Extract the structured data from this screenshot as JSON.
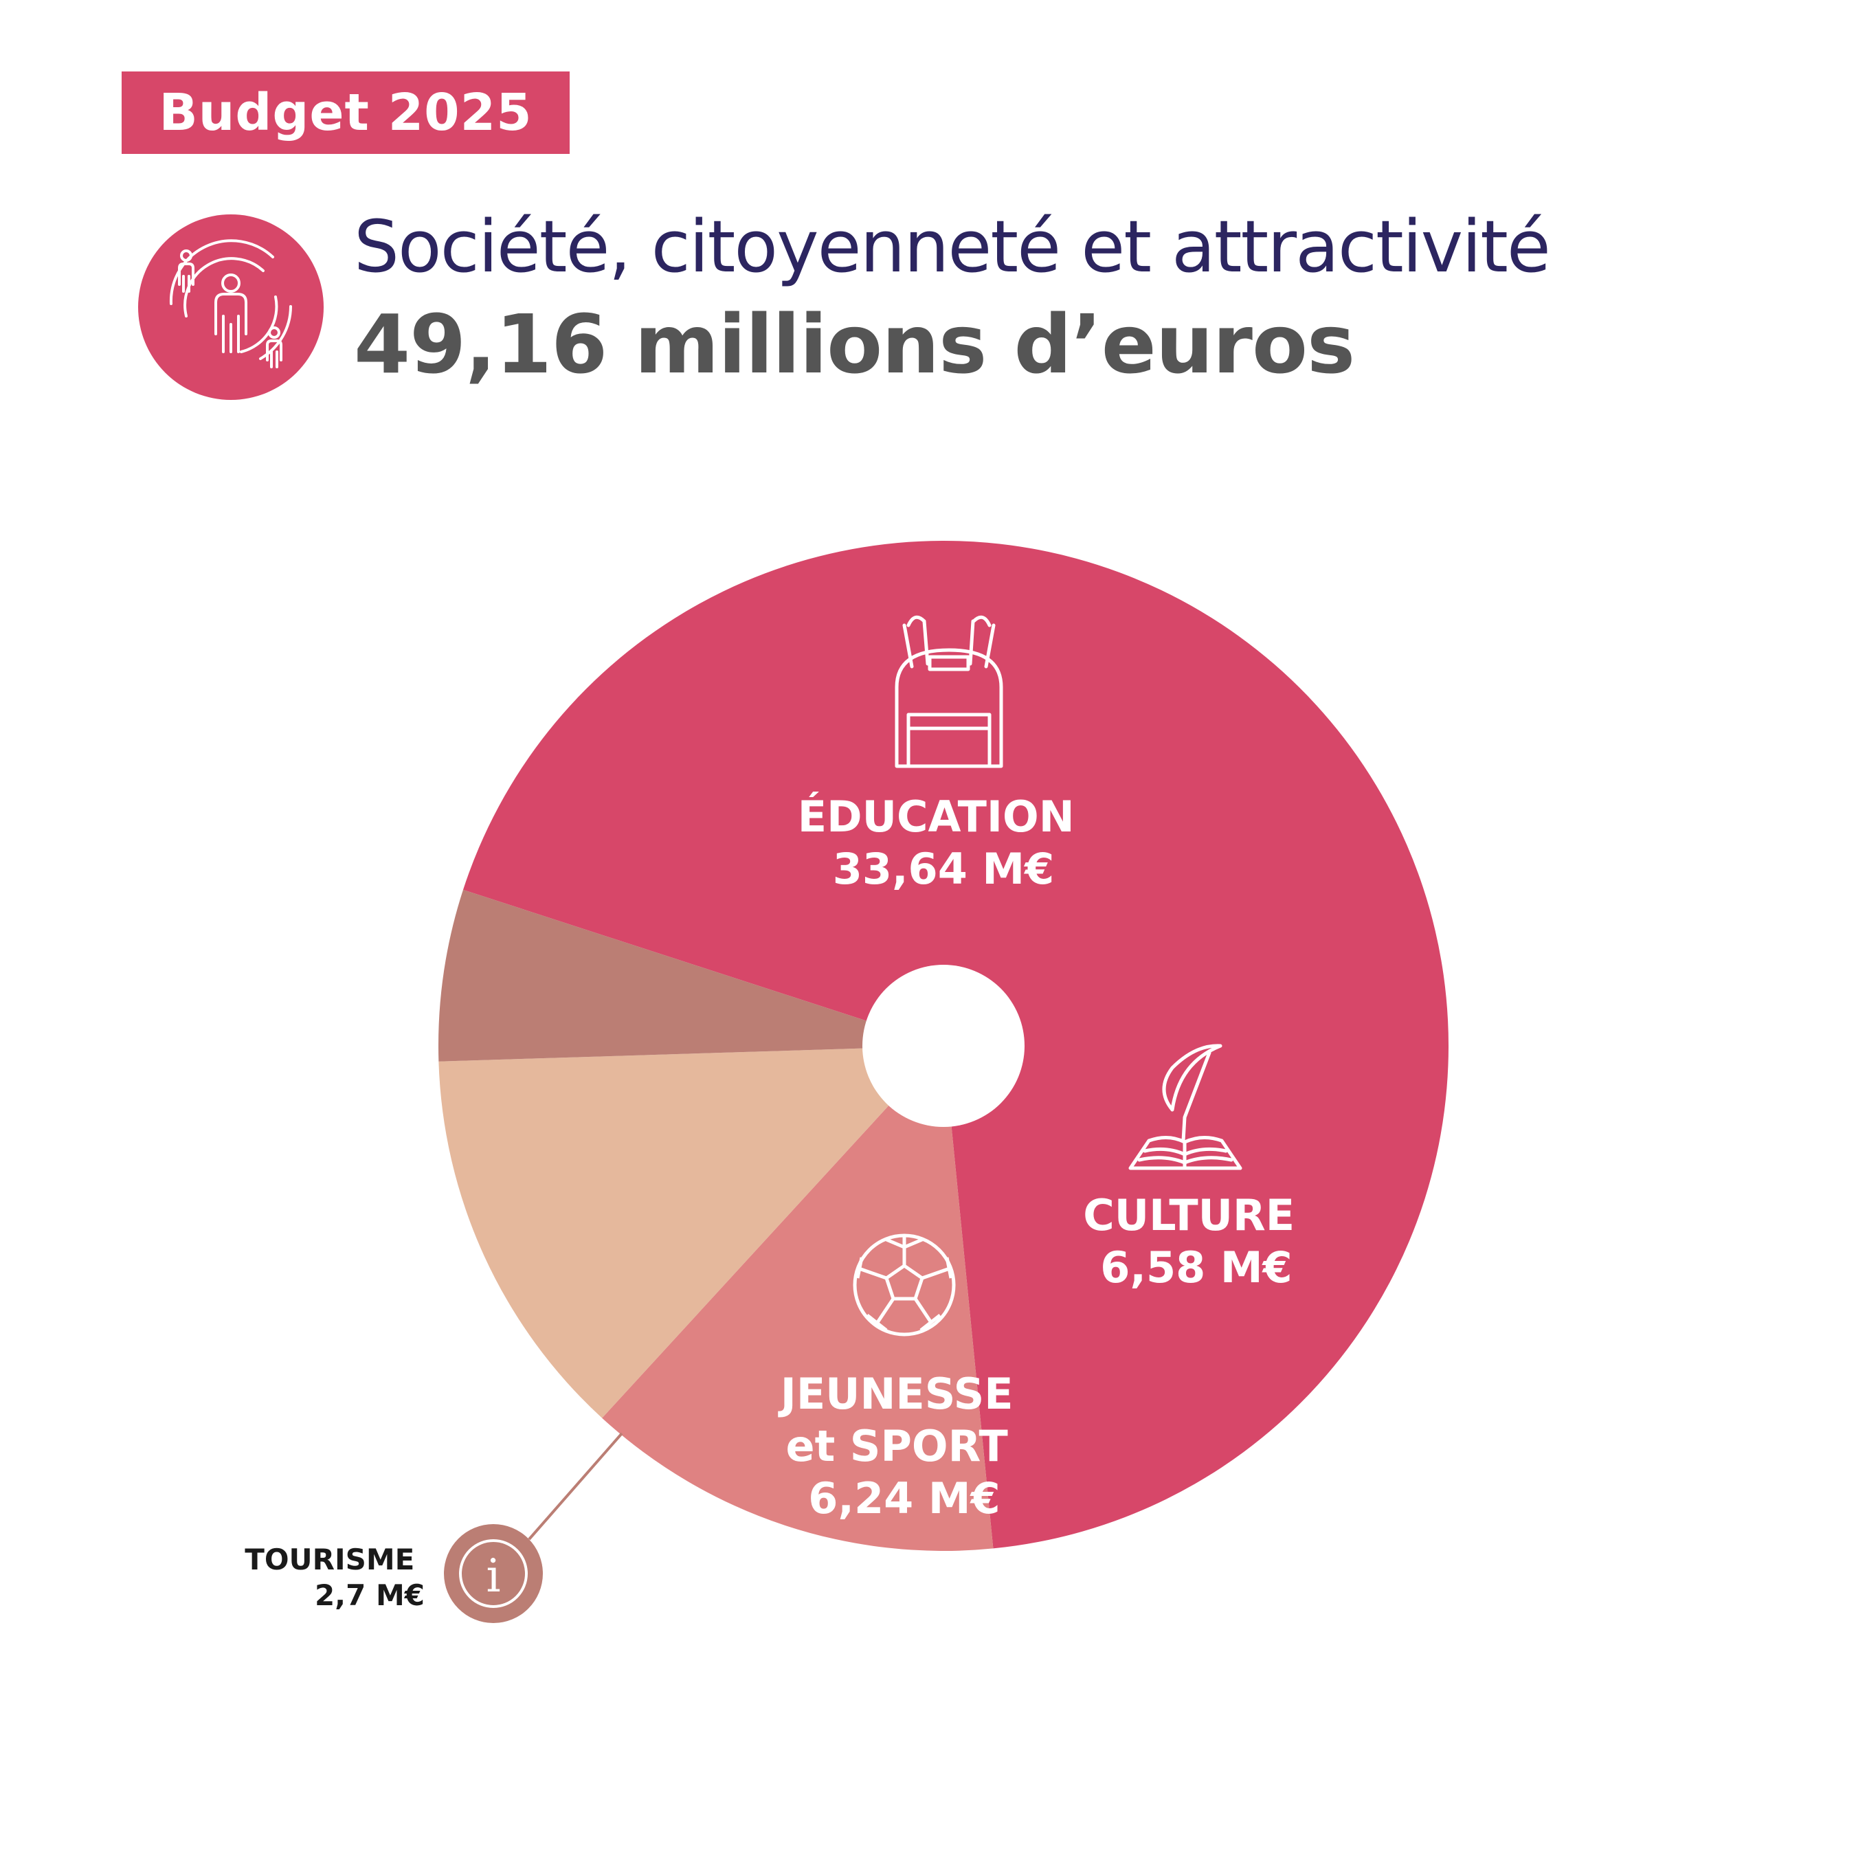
{
  "badge": "Budget 2025",
  "subtitle": "Société, citoyenneté et attractivité",
  "total": "49,16 millions d’euros",
  "colors": {
    "accent": "#d74769",
    "title": "#2c2560",
    "total": "#555555"
  },
  "chart_data": {
    "type": "pie",
    "unit": "M€",
    "slices": [
      {
        "name": "ÉDUCATION",
        "value": 33.64,
        "label_lines": [
          "ÉDUCATION",
          "33,64 M€"
        ],
        "color": "#d74769",
        "icon": "backpack-icon"
      },
      {
        "name": "CULTURE",
        "value": 6.58,
        "label_lines": [
          "CULTURE",
          "6,58 M€"
        ],
        "color": "#df8282",
        "icon": "quill-book-icon"
      },
      {
        "name": "JEUNESSE et SPORT",
        "value": 6.24,
        "label_lines": [
          "JEUNESSE",
          "et SPORT",
          "6,24 M€"
        ],
        "color": "#e5b89c",
        "icon": "soccer-ball-icon"
      },
      {
        "name": "TOURISME",
        "value": 2.7,
        "label_lines": [
          "TOURISME",
          "2,7 M€"
        ],
        "color": "#bb7e74",
        "icon": "info-icon"
      }
    ]
  }
}
